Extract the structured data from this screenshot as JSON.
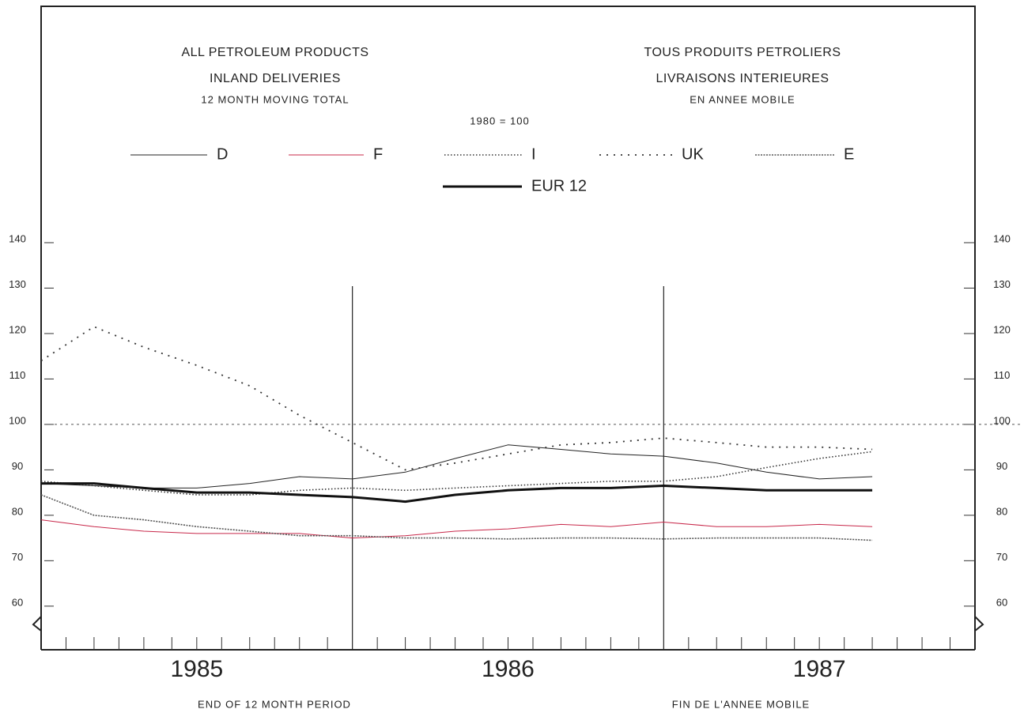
{
  "chart_data": {
    "type": "line",
    "titles_en": [
      "ALL PETROLEUM PRODUCTS",
      "INLAND DELIVERIES",
      "12 MONTH MOVING TOTAL"
    ],
    "titles_fr": [
      "TOUS PRODUITS PETROLIERS",
      "LIVRAISONS INTERIEURES",
      "EN ANNEE MOBILE"
    ],
    "base_note": "1980 = 100",
    "xlabel_en": "END OF 12 MONTH PERIOD",
    "xlabel_fr": "FIN DE L'ANNEE MOBILE",
    "xlim": [
      1985,
      1988
    ],
    "xticks": [
      {
        "value": 1985.5,
        "label": "1985"
      },
      {
        "value": 1986.5,
        "label": "1986"
      },
      {
        "value": 1987.5,
        "label": "1987"
      }
    ],
    "xminorticks": [
      1985.08,
      1985.17,
      1985.25,
      1985.33,
      1985.42,
      1985.5,
      1985.58,
      1985.67,
      1985.75,
      1985.83,
      1985.92,
      1986.08,
      1986.17,
      1986.25,
      1986.33,
      1986.42,
      1986.5,
      1986.58,
      1986.67,
      1986.75,
      1986.83,
      1986.92,
      1987.08,
      1987.17,
      1987.25,
      1987.33,
      1987.42,
      1987.5,
      1987.58,
      1987.67,
      1987.75,
      1987.83,
      1987.92
    ],
    "vlines": [
      1986,
      1987
    ],
    "ylim": [
      50.4,
      140
    ],
    "yticks": [
      60,
      70,
      80,
      90,
      100,
      110,
      120,
      130,
      140
    ],
    "reference_line": 100,
    "x": [
      1985,
      1985.17,
      1985.33,
      1985.5,
      1985.67,
      1985.83,
      1986,
      1986.17,
      1986.33,
      1986.5,
      1986.67,
      1986.83,
      1987,
      1987.17,
      1987.33,
      1987.5,
      1987.67
    ],
    "series": [
      {
        "name": "D",
        "color": "#222222",
        "line_style": "solid",
        "line_width": 1,
        "values": [
          87,
          86.5,
          86,
          86,
          87,
          88.5,
          88,
          89.5,
          92.5,
          95.5,
          94.5,
          93.5,
          93,
          91.5,
          89.5,
          88,
          88.5
        ]
      },
      {
        "name": "F",
        "color": "#c8284a",
        "line_style": "solid",
        "line_width": 1,
        "values": [
          79,
          77.5,
          76.5,
          76,
          76,
          76,
          75,
          75.5,
          76.5,
          77,
          78,
          77.5,
          78.5,
          77.5,
          77.5,
          78,
          77.5
        ]
      },
      {
        "name": "I",
        "color": "#333333",
        "line_style": "dotted",
        "line_width": 1.6,
        "values": [
          87.5,
          86.5,
          85.5,
          84.5,
          84.5,
          85.5,
          86,
          85.5,
          86,
          86.5,
          87,
          87.5,
          87.5,
          88.5,
          90.5,
          92.5,
          94
        ]
      },
      {
        "name": "UK",
        "color": "#333333",
        "line_style": "sparse-dotted",
        "line_width": 1.8,
        "values": [
          114,
          121.5,
          117,
          113,
          108.5,
          102,
          96,
          90,
          91.5,
          93.5,
          95.5,
          96,
          97,
          96,
          95,
          95,
          94.5
        ]
      },
      {
        "name": "E",
        "color": "#555555",
        "line_style": "dashed",
        "line_width": 1.6,
        "values": [
          84.5,
          80,
          79,
          77.5,
          76.5,
          75.5,
          75.5,
          75,
          75,
          74.8,
          75,
          75,
          74.8,
          75,
          75,
          75,
          74.5
        ]
      },
      {
        "name": "EUR 12",
        "color": "#111111",
        "line_style": "solid",
        "line_width": 3,
        "values": [
          87,
          87,
          86,
          85,
          85,
          84.5,
          84,
          83,
          84.5,
          85.5,
          86,
          86,
          86.5,
          86,
          85.5,
          85.5,
          85.5
        ]
      }
    ]
  }
}
